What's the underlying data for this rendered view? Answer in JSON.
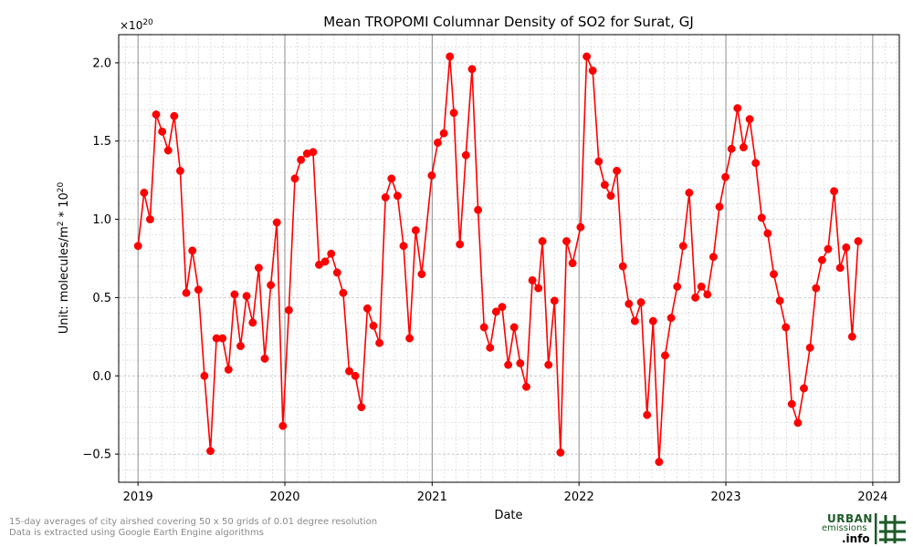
{
  "chart_data": {
    "type": "line",
    "title": "Mean TROPOMI Columnar Density of SO2 for Surat, GJ",
    "xlabel": "Date",
    "ylabel_prefix": "Unit: molecules/m",
    "ylabel_exp": "2",
    "ylabel_mid": " * 10",
    "ylabel_exp2": "20",
    "offset_base": "×10",
    "offset_exp": "20",
    "x_ticks": [
      "2019",
      "2020",
      "2021",
      "2022",
      "2023",
      "2024"
    ],
    "y_ticks": [
      -0.5,
      0.0,
      0.5,
      1.0,
      1.5,
      2.0
    ],
    "ylim": [
      -0.68,
      2.18
    ],
    "xlim": [
      "2018-11-14",
      "2024-03-07"
    ],
    "grid": true,
    "series": [
      {
        "color": "#ff0000",
        "marker": "circle",
        "points": [
          [
            "2019-01-01",
            0.83
          ],
          [
            "2019-01-16",
            1.17
          ],
          [
            "2019-01-31",
            1.0
          ],
          [
            "2019-02-15",
            1.67
          ],
          [
            "2019-03-02",
            1.56
          ],
          [
            "2019-03-17",
            1.44
          ],
          [
            "2019-04-01",
            1.66
          ],
          [
            "2019-04-16",
            1.31
          ],
          [
            "2019-05-01",
            0.53
          ],
          [
            "2019-05-16",
            0.8
          ],
          [
            "2019-05-31",
            0.55
          ],
          [
            "2019-06-15",
            0.0
          ],
          [
            "2019-06-30",
            -0.48
          ],
          [
            "2019-07-15",
            0.24
          ],
          [
            "2019-07-30",
            0.24
          ],
          [
            "2019-08-14",
            0.04
          ],
          [
            "2019-08-29",
            0.52
          ],
          [
            "2019-09-13",
            0.19
          ],
          [
            "2019-09-28",
            0.51
          ],
          [
            "2019-10-13",
            0.34
          ],
          [
            "2019-10-28",
            0.69
          ],
          [
            "2019-11-12",
            0.11
          ],
          [
            "2019-11-27",
            0.58
          ],
          [
            "2019-12-12",
            0.98
          ],
          [
            "2019-12-27",
            -0.32
          ],
          [
            "2020-01-11",
            0.42
          ],
          [
            "2020-01-26",
            1.26
          ],
          [
            "2020-02-10",
            1.38
          ],
          [
            "2020-02-25",
            1.42
          ],
          [
            "2020-03-11",
            1.43
          ],
          [
            "2020-03-26",
            0.71
          ],
          [
            "2020-04-10",
            0.73
          ],
          [
            "2020-04-25",
            0.78
          ],
          [
            "2020-05-10",
            0.66
          ],
          [
            "2020-05-25",
            0.53
          ],
          [
            "2020-06-09",
            0.03
          ],
          [
            "2020-06-24",
            0.0
          ],
          [
            "2020-07-09",
            -0.2
          ],
          [
            "2020-07-24",
            0.43
          ],
          [
            "2020-08-08",
            0.32
          ],
          [
            "2020-08-23",
            0.21
          ],
          [
            "2020-09-07",
            1.14
          ],
          [
            "2020-09-22",
            1.26
          ],
          [
            "2020-10-07",
            1.15
          ],
          [
            "2020-10-22",
            0.83
          ],
          [
            "2020-11-06",
            0.24
          ],
          [
            "2020-11-21",
            0.93
          ],
          [
            "2020-12-06",
            0.65
          ],
          [
            "2020-12-31",
            1.28
          ],
          [
            "2021-01-15",
            1.49
          ],
          [
            "2021-01-30",
            1.55
          ],
          [
            "2021-02-14",
            2.04
          ],
          [
            "2021-02-24",
            1.68
          ],
          [
            "2021-03-11",
            0.84
          ],
          [
            "2021-03-26",
            1.41
          ],
          [
            "2021-04-10",
            1.96
          ],
          [
            "2021-04-25",
            1.06
          ],
          [
            "2021-05-10",
            0.31
          ],
          [
            "2021-05-25",
            0.18
          ],
          [
            "2021-06-09",
            0.41
          ],
          [
            "2021-06-24",
            0.44
          ],
          [
            "2021-07-09",
            0.07
          ],
          [
            "2021-07-24",
            0.31
          ],
          [
            "2021-08-08",
            0.08
          ],
          [
            "2021-08-23",
            -0.07
          ],
          [
            "2021-09-07",
            0.61
          ],
          [
            "2021-09-22",
            0.56
          ],
          [
            "2021-10-02",
            0.86
          ],
          [
            "2021-10-17",
            0.07
          ],
          [
            "2021-11-01",
            0.48
          ],
          [
            "2021-11-16",
            -0.49
          ],
          [
            "2021-12-01",
            0.86
          ],
          [
            "2021-12-16",
            0.72
          ],
          [
            "2022-01-05",
            0.95
          ],
          [
            "2022-01-20",
            2.04
          ],
          [
            "2022-02-04",
            1.95
          ],
          [
            "2022-02-19",
            1.37
          ],
          [
            "2022-03-06",
            1.22
          ],
          [
            "2022-03-21",
            1.15
          ],
          [
            "2022-04-05",
            1.31
          ],
          [
            "2022-04-20",
            0.7
          ],
          [
            "2022-05-05",
            0.46
          ],
          [
            "2022-05-20",
            0.35
          ],
          [
            "2022-06-04",
            0.47
          ],
          [
            "2022-06-19",
            -0.25
          ],
          [
            "2022-07-04",
            0.35
          ],
          [
            "2022-07-19",
            -0.55
          ],
          [
            "2022-08-03",
            0.13
          ],
          [
            "2022-08-18",
            0.37
          ],
          [
            "2022-09-02",
            0.57
          ],
          [
            "2022-09-17",
            0.83
          ],
          [
            "2022-10-02",
            1.17
          ],
          [
            "2022-10-17",
            0.5
          ],
          [
            "2022-11-01",
            0.57
          ],
          [
            "2022-11-16",
            0.52
          ],
          [
            "2022-12-01",
            0.76
          ],
          [
            "2022-12-16",
            1.08
          ],
          [
            "2022-12-31",
            1.27
          ],
          [
            "2023-01-15",
            1.45
          ],
          [
            "2023-01-30",
            1.71
          ],
          [
            "2023-02-14",
            1.46
          ],
          [
            "2023-03-01",
            1.64
          ],
          [
            "2023-03-16",
            1.36
          ],
          [
            "2023-03-31",
            1.01
          ],
          [
            "2023-04-15",
            0.91
          ],
          [
            "2023-04-30",
            0.65
          ],
          [
            "2023-05-15",
            0.48
          ],
          [
            "2023-05-30",
            0.31
          ],
          [
            "2023-06-14",
            -0.18
          ],
          [
            "2023-06-29",
            -0.3
          ],
          [
            "2023-07-14",
            -0.08
          ],
          [
            "2023-07-29",
            0.18
          ],
          [
            "2023-08-13",
            0.56
          ],
          [
            "2023-08-28",
            0.74
          ],
          [
            "2023-09-12",
            0.81
          ],
          [
            "2023-09-27",
            1.18
          ],
          [
            "2023-10-12",
            0.69
          ],
          [
            "2023-10-27",
            0.82
          ],
          [
            "2023-11-11",
            0.25
          ],
          [
            "2023-11-26",
            0.86
          ]
        ]
      }
    ]
  },
  "footnotes": [
    "15-day averages of city airshed covering 50 x 50 grids of 0.01 degree resolution",
    "Data is extracted using Google Earth Engine algorithms"
  ],
  "logo": {
    "line1": "URBAN",
    "line2": "emissions",
    "line3": ".info",
    "color": "#1d5a27"
  }
}
